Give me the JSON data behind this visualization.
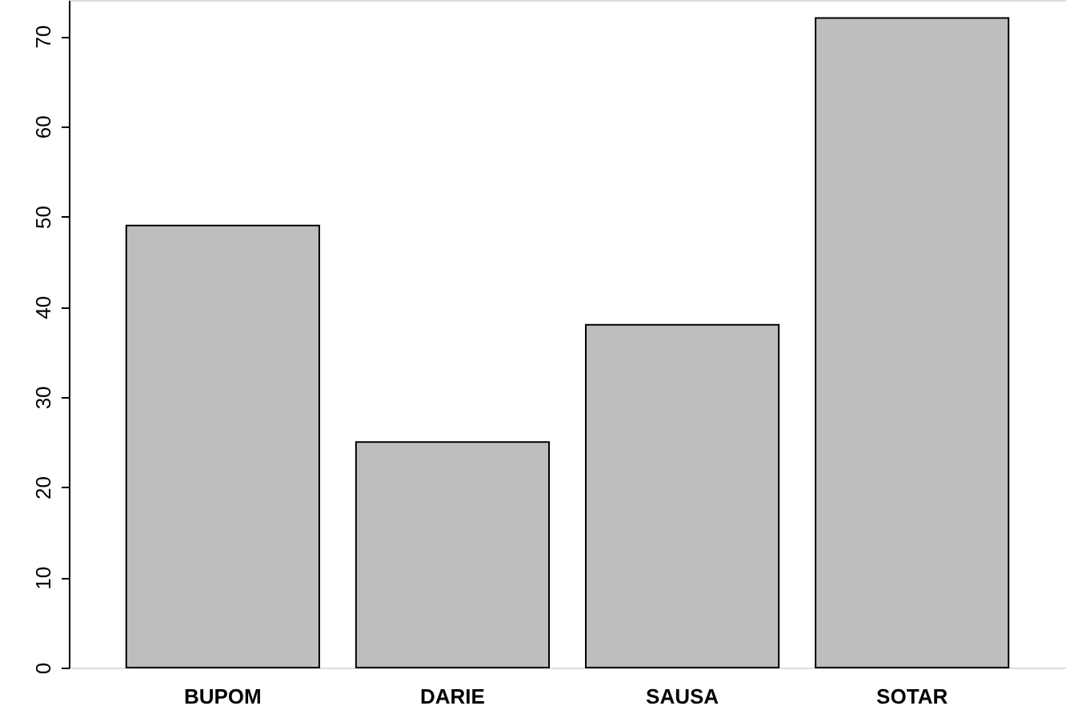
{
  "chart_data": {
    "type": "bar",
    "categories": [
      "BUPOM",
      "DARIE",
      "SAUSA",
      "SOTAR"
    ],
    "values": [
      49,
      25,
      38,
      72
    ],
    "color": "#bebebe",
    "ylim": [
      0,
      74
    ],
    "yticks": [
      0,
      10,
      20,
      30,
      40,
      50,
      60,
      70
    ],
    "grid": false
  }
}
